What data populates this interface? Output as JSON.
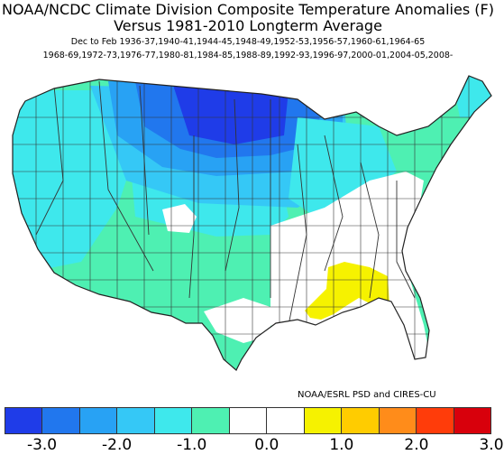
{
  "title_line1": "NOAA/NCDC Climate Division Composite Temperature Anomalies (F)",
  "title_line2": "Versus 1981-2010 Longterm Average",
  "season_line1": "Dec to Feb   1936-37,1940-41,1944-45,1948-49,1952-53,1956-57,1960-61,1964-65",
  "season_line2": "1968-69,1972-73,1976-77,1980-81,1984-85,1988-89,1992-93,1996-97,2000-01,2004-05,2008-",
  "credit": "NOAA/ESRL PSD and CIRES-CU",
  "colorbar": {
    "colors": [
      "#1f3ce8",
      "#2177ee",
      "#28a2f4",
      "#35c8f6",
      "#3ee8ec",
      "#4ef0b2",
      "#ffffff",
      "#ffffff",
      "#f6f200",
      "#ffcc00",
      "#ff8c1a",
      "#ff3c0a",
      "#d8000c"
    ],
    "ticks": [
      "-3.0",
      "-2.0",
      "-1.0",
      "0.0",
      "1.0",
      "2.0",
      "3.0"
    ]
  }
}
